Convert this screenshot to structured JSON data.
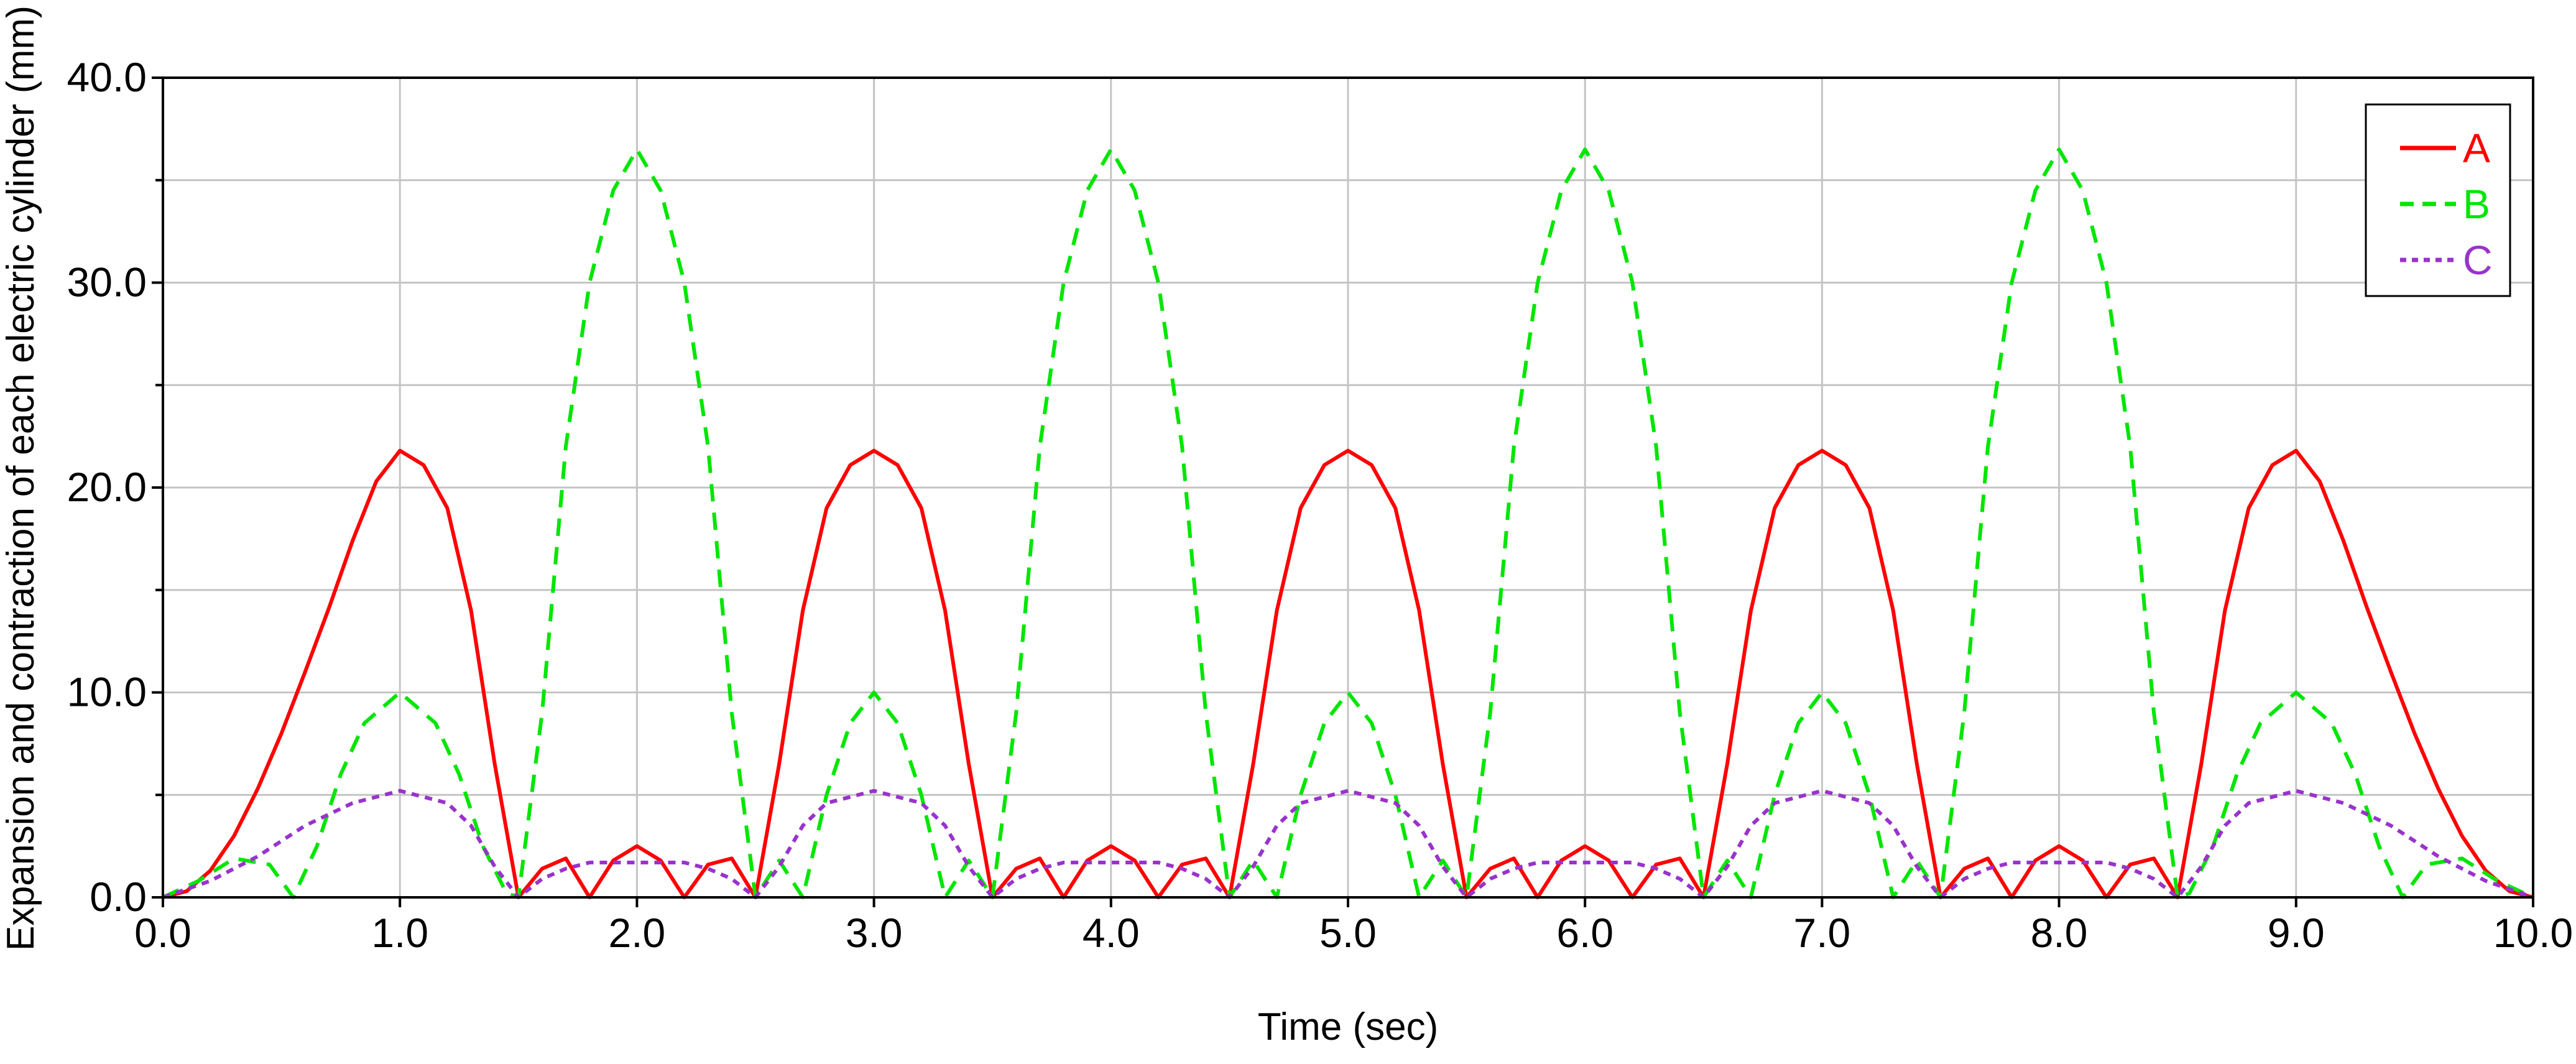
{
  "chart_data": {
    "type": "line",
    "title": "",
    "xlabel": "Time (sec)",
    "ylabel": "Expansion and contraction of each electric cylinder (mm)",
    "xlim": [
      0,
      10
    ],
    "ylim": [
      0,
      40
    ],
    "x_ticks": [
      "0.0",
      "1.0",
      "2.0",
      "3.0",
      "4.0",
      "5.0",
      "6.0",
      "7.0",
      "8.0",
      "9.0",
      "10.0"
    ],
    "y_ticks": [
      "0.0",
      "10.0",
      "20.0",
      "30.0",
      "40.0"
    ],
    "grid": true,
    "legend": {
      "position": "top-right"
    },
    "series": [
      {
        "name": "A",
        "color": "#ff0000",
        "style": "solid",
        "points": [
          [
            0.0,
            0.0
          ],
          [
            0.1,
            0.3
          ],
          [
            0.2,
            1.3
          ],
          [
            0.3,
            3.0
          ],
          [
            0.4,
            5.3
          ],
          [
            0.5,
            8.0
          ],
          [
            0.6,
            11.0
          ],
          [
            0.7,
            14.1
          ],
          [
            0.8,
            17.4
          ],
          [
            0.9,
            20.3
          ],
          [
            1.0,
            21.8
          ],
          [
            1.1,
            21.1
          ],
          [
            1.2,
            19.0
          ],
          [
            1.3,
            14.0
          ],
          [
            1.4,
            6.5
          ],
          [
            1.5,
            0.0
          ],
          [
            1.6,
            1.4
          ],
          [
            1.7,
            1.9
          ],
          [
            1.8,
            0.0
          ],
          [
            1.9,
            1.8
          ],
          [
            2.0,
            2.5
          ],
          [
            2.1,
            1.8
          ],
          [
            2.2,
            0.0
          ],
          [
            2.3,
            1.6
          ],
          [
            2.4,
            1.9
          ],
          [
            2.5,
            0.0
          ],
          [
            2.6,
            6.5
          ],
          [
            2.7,
            14.0
          ],
          [
            2.8,
            19.0
          ],
          [
            2.9,
            21.1
          ],
          [
            3.0,
            21.8
          ],
          [
            3.1,
            21.1
          ],
          [
            3.2,
            19.0
          ],
          [
            3.3,
            14.0
          ],
          [
            3.4,
            6.5
          ],
          [
            3.5,
            0.0
          ],
          [
            3.6,
            1.4
          ],
          [
            3.7,
            1.9
          ],
          [
            3.8,
            0.0
          ],
          [
            3.9,
            1.8
          ],
          [
            4.0,
            2.5
          ],
          [
            4.1,
            1.8
          ],
          [
            4.2,
            0.0
          ],
          [
            4.3,
            1.6
          ],
          [
            4.4,
            1.9
          ],
          [
            4.5,
            0.0
          ],
          [
            4.6,
            6.5
          ],
          [
            4.7,
            14.0
          ],
          [
            4.8,
            19.0
          ],
          [
            4.9,
            21.1
          ],
          [
            5.0,
            21.8
          ],
          [
            5.1,
            21.1
          ],
          [
            5.2,
            19.0
          ],
          [
            5.3,
            14.0
          ],
          [
            5.4,
            6.5
          ],
          [
            5.5,
            0.0
          ],
          [
            5.6,
            1.4
          ],
          [
            5.7,
            1.9
          ],
          [
            5.8,
            0.0
          ],
          [
            5.9,
            1.8
          ],
          [
            6.0,
            2.5
          ],
          [
            6.1,
            1.8
          ],
          [
            6.2,
            0.0
          ],
          [
            6.3,
            1.6
          ],
          [
            6.4,
            1.9
          ],
          [
            6.5,
            0.0
          ],
          [
            6.6,
            6.5
          ],
          [
            6.7,
            14.0
          ],
          [
            6.8,
            19.0
          ],
          [
            6.9,
            21.1
          ],
          [
            7.0,
            21.8
          ],
          [
            7.1,
            21.1
          ],
          [
            7.2,
            19.0
          ],
          [
            7.3,
            14.0
          ],
          [
            7.4,
            6.5
          ],
          [
            7.5,
            0.0
          ],
          [
            7.6,
            1.4
          ],
          [
            7.7,
            1.9
          ],
          [
            7.8,
            0.0
          ],
          [
            7.9,
            1.8
          ],
          [
            8.0,
            2.5
          ],
          [
            8.1,
            1.8
          ],
          [
            8.2,
            0.0
          ],
          [
            8.3,
            1.6
          ],
          [
            8.4,
            1.9
          ],
          [
            8.5,
            0.0
          ],
          [
            8.6,
            6.5
          ],
          [
            8.7,
            14.0
          ],
          [
            8.8,
            19.0
          ],
          [
            8.9,
            21.1
          ],
          [
            9.0,
            21.8
          ],
          [
            9.1,
            20.3
          ],
          [
            9.2,
            17.4
          ],
          [
            9.3,
            14.1
          ],
          [
            9.4,
            11.0
          ],
          [
            9.5,
            8.0
          ],
          [
            9.6,
            5.3
          ],
          [
            9.7,
            3.0
          ],
          [
            9.8,
            1.3
          ],
          [
            9.9,
            0.3
          ],
          [
            10.0,
            0.0
          ]
        ]
      },
      {
        "name": "B",
        "color": "#00e600",
        "style": "dashed",
        "points": [
          [
            0.0,
            0.0
          ],
          [
            0.15,
            0.8
          ],
          [
            0.3,
            1.9
          ],
          [
            0.45,
            1.6
          ],
          [
            0.55,
            0.0
          ],
          [
            0.65,
            2.5
          ],
          [
            0.75,
            6.0
          ],
          [
            0.85,
            8.5
          ],
          [
            1.0,
            10.0
          ],
          [
            1.15,
            8.5
          ],
          [
            1.25,
            6.0
          ],
          [
            1.35,
            2.5
          ],
          [
            1.45,
            0.2
          ],
          [
            1.5,
            0.0
          ],
          [
            1.6,
            9.0
          ],
          [
            1.7,
            22.0
          ],
          [
            1.8,
            30.0
          ],
          [
            1.9,
            34.5
          ],
          [
            2.0,
            36.5
          ],
          [
            2.1,
            34.5
          ],
          [
            2.2,
            30.0
          ],
          [
            2.3,
            22.0
          ],
          [
            2.4,
            9.0
          ],
          [
            2.5,
            0.0
          ],
          [
            2.6,
            1.8
          ],
          [
            2.7,
            0.0
          ],
          [
            2.8,
            5.0
          ],
          [
            2.9,
            8.5
          ],
          [
            3.0,
            10.0
          ],
          [
            3.1,
            8.5
          ],
          [
            3.2,
            5.0
          ],
          [
            3.3,
            0.0
          ],
          [
            3.4,
            1.8
          ],
          [
            3.5,
            0.0
          ],
          [
            3.6,
            9.0
          ],
          [
            3.7,
            22.0
          ],
          [
            3.8,
            30.0
          ],
          [
            3.9,
            34.5
          ],
          [
            4.0,
            36.5
          ],
          [
            4.1,
            34.5
          ],
          [
            4.2,
            30.0
          ],
          [
            4.3,
            22.0
          ],
          [
            4.4,
            9.0
          ],
          [
            4.5,
            0.0
          ],
          [
            4.6,
            1.8
          ],
          [
            4.7,
            0.0
          ],
          [
            4.8,
            5.0
          ],
          [
            4.9,
            8.5
          ],
          [
            5.0,
            10.0
          ],
          [
            5.1,
            8.5
          ],
          [
            5.2,
            5.0
          ],
          [
            5.3,
            0.0
          ],
          [
            5.4,
            1.8
          ],
          [
            5.5,
            0.0
          ],
          [
            5.6,
            9.0
          ],
          [
            5.7,
            22.0
          ],
          [
            5.8,
            30.0
          ],
          [
            5.9,
            34.5
          ],
          [
            6.0,
            36.5
          ],
          [
            6.1,
            34.5
          ],
          [
            6.2,
            30.0
          ],
          [
            6.3,
            22.0
          ],
          [
            6.4,
            9.0
          ],
          [
            6.5,
            0.0
          ],
          [
            6.6,
            1.8
          ],
          [
            6.7,
            0.0
          ],
          [
            6.8,
            5.0
          ],
          [
            6.9,
            8.5
          ],
          [
            7.0,
            10.0
          ],
          [
            7.1,
            8.5
          ],
          [
            7.2,
            5.0
          ],
          [
            7.3,
            0.0
          ],
          [
            7.4,
            1.8
          ],
          [
            7.5,
            0.0
          ],
          [
            7.6,
            9.0
          ],
          [
            7.7,
            22.0
          ],
          [
            7.8,
            30.0
          ],
          [
            7.9,
            34.5
          ],
          [
            8.0,
            36.5
          ],
          [
            8.1,
            34.5
          ],
          [
            8.2,
            30.0
          ],
          [
            8.3,
            22.0
          ],
          [
            8.4,
            9.0
          ],
          [
            8.5,
            0.0
          ],
          [
            8.55,
            0.2
          ],
          [
            8.65,
            2.5
          ],
          [
            8.75,
            6.0
          ],
          [
            8.85,
            8.5
          ],
          [
            9.0,
            10.0
          ],
          [
            9.15,
            8.5
          ],
          [
            9.25,
            6.0
          ],
          [
            9.35,
            2.5
          ],
          [
            9.45,
            0.0
          ],
          [
            9.55,
            1.6
          ],
          [
            9.7,
            1.9
          ],
          [
            9.85,
            0.8
          ],
          [
            10.0,
            0.0
          ]
        ]
      },
      {
        "name": "C",
        "color": "#9933cc",
        "style": "dotted",
        "points": [
          [
            0.0,
            0.0
          ],
          [
            0.2,
            0.8
          ],
          [
            0.4,
            2.0
          ],
          [
            0.6,
            3.5
          ],
          [
            0.8,
            4.6
          ],
          [
            1.0,
            5.2
          ],
          [
            1.2,
            4.6
          ],
          [
            1.3,
            3.5
          ],
          [
            1.4,
            1.5
          ],
          [
            1.5,
            0.0
          ],
          [
            1.6,
            0.9
          ],
          [
            1.7,
            1.4
          ],
          [
            1.8,
            1.7
          ],
          [
            2.0,
            1.7
          ],
          [
            2.2,
            1.7
          ],
          [
            2.3,
            1.4
          ],
          [
            2.4,
            0.9
          ],
          [
            2.5,
            0.0
          ],
          [
            2.6,
            1.5
          ],
          [
            2.7,
            3.5
          ],
          [
            2.8,
            4.6
          ],
          [
            3.0,
            5.2
          ],
          [
            3.2,
            4.6
          ],
          [
            3.3,
            3.5
          ],
          [
            3.4,
            1.5
          ],
          [
            3.5,
            0.0
          ],
          [
            3.6,
            0.9
          ],
          [
            3.7,
            1.4
          ],
          [
            3.8,
            1.7
          ],
          [
            4.0,
            1.7
          ],
          [
            4.2,
            1.7
          ],
          [
            4.3,
            1.4
          ],
          [
            4.4,
            0.9
          ],
          [
            4.5,
            0.0
          ],
          [
            4.6,
            1.5
          ],
          [
            4.7,
            3.5
          ],
          [
            4.8,
            4.6
          ],
          [
            5.0,
            5.2
          ],
          [
            5.2,
            4.6
          ],
          [
            5.3,
            3.5
          ],
          [
            5.4,
            1.5
          ],
          [
            5.5,
            0.0
          ],
          [
            5.6,
            0.9
          ],
          [
            5.7,
            1.4
          ],
          [
            5.8,
            1.7
          ],
          [
            6.0,
            1.7
          ],
          [
            6.2,
            1.7
          ],
          [
            6.3,
            1.4
          ],
          [
            6.4,
            0.9
          ],
          [
            6.5,
            0.0
          ],
          [
            6.6,
            1.5
          ],
          [
            6.7,
            3.5
          ],
          [
            6.8,
            4.6
          ],
          [
            7.0,
            5.2
          ],
          [
            7.2,
            4.6
          ],
          [
            7.3,
            3.5
          ],
          [
            7.4,
            1.5
          ],
          [
            7.5,
            0.0
          ],
          [
            7.6,
            0.9
          ],
          [
            7.7,
            1.4
          ],
          [
            7.8,
            1.7
          ],
          [
            8.0,
            1.7
          ],
          [
            8.2,
            1.7
          ],
          [
            8.3,
            1.4
          ],
          [
            8.4,
            0.9
          ],
          [
            8.5,
            0.0
          ],
          [
            8.6,
            1.5
          ],
          [
            8.7,
            3.5
          ],
          [
            8.8,
            4.6
          ],
          [
            9.0,
            5.2
          ],
          [
            9.2,
            4.6
          ],
          [
            9.4,
            3.5
          ],
          [
            9.6,
            2.0
          ],
          [
            9.8,
            0.8
          ],
          [
            10.0,
            0.0
          ]
        ]
      }
    ]
  }
}
